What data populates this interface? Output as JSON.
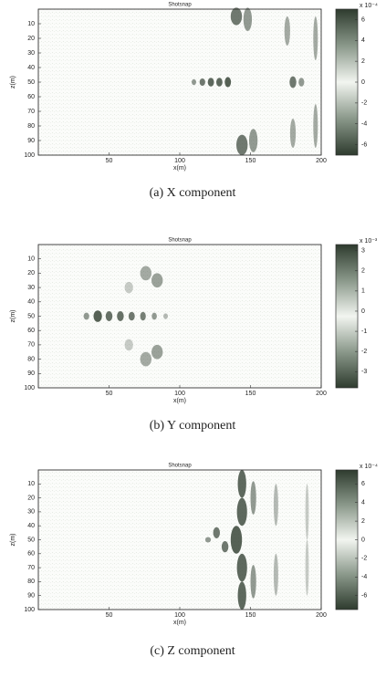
{
  "chart_data": [
    {
      "type": "heatmap",
      "title": "Shotsnap",
      "x_label": "x(m)",
      "y_label": "z(m)",
      "xlim": [
        0,
        200
      ],
      "xticks": [
        50,
        100,
        150,
        200
      ],
      "ylim": [
        100,
        0
      ],
      "yticks": [
        10,
        20,
        30,
        40,
        50,
        60,
        70,
        80,
        90,
        100
      ],
      "clim": [
        -7,
        7
      ],
      "cticks": [
        6,
        4,
        2,
        0,
        -2,
        -4,
        -6
      ],
      "color_scale_label": "x 10⁻⁴",
      "caption": "(a) X component"
    },
    {
      "type": "heatmap",
      "title": "Shotsnap",
      "x_label": "x(m)",
      "y_label": "z(m)",
      "xlim": [
        0,
        200
      ],
      "xticks": [
        50,
        100,
        150,
        200
      ],
      "ylim": [
        100,
        0
      ],
      "yticks": [
        10,
        20,
        30,
        40,
        50,
        60,
        70,
        80,
        90,
        100
      ],
      "clim": [
        -3.8,
        3.3
      ],
      "cticks": [
        3,
        2,
        1,
        0,
        -1,
        -2,
        -3
      ],
      "color_scale_label": "x 10⁻³",
      "caption": "(b) Y component"
    },
    {
      "type": "heatmap",
      "title": "Shotsnap",
      "x_label": "x(m)",
      "y_label": "z(m)",
      "xlim": [
        0,
        200
      ],
      "xticks": [
        50,
        100,
        150,
        200
      ],
      "ylim": [
        100,
        0
      ],
      "yticks": [
        10,
        20,
        30,
        40,
        50,
        60,
        70,
        80,
        90,
        100
      ],
      "clim": [
        -7.5,
        7.5
      ],
      "cticks": [
        6,
        4,
        2,
        0,
        -2,
        -4,
        -6
      ],
      "color_scale_label": "x 10⁻⁴",
      "caption": "(c) Z component"
    }
  ]
}
